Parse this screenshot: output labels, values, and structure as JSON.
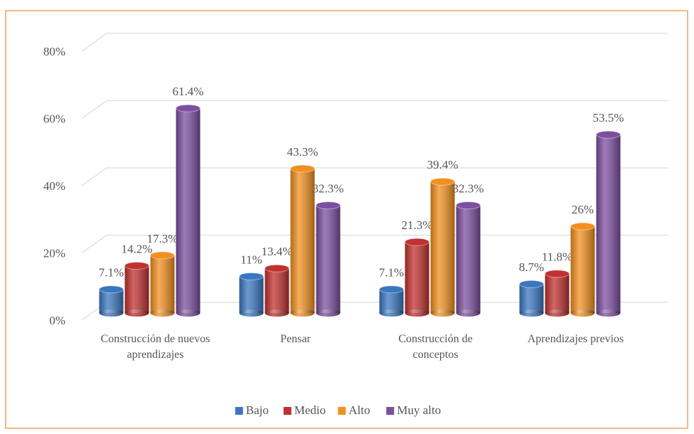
{
  "chart_data": {
    "type": "bar3d",
    "categories": [
      "Construcción de nuevos aprendizajes",
      "Pensar",
      "Construcción de conceptos",
      "Aprendizajes previos"
    ],
    "series": [
      {
        "name": "Bajo",
        "color": "#3a77c2",
        "values": [
          7.1,
          11,
          7.1,
          8.7
        ],
        "value_labels": [
          "7.1%",
          "11%",
          "7.1%",
          "8.7%"
        ]
      },
      {
        "name": "Medio",
        "color": "#c0312f",
        "values": [
          14.2,
          13.4,
          21.3,
          11.8
        ],
        "value_labels": [
          "14.2%",
          "13.4%",
          "21.3%",
          "11.8%"
        ]
      },
      {
        "name": "Alto",
        "color": "#f2901f",
        "values": [
          17.3,
          43.3,
          39.4,
          26
        ],
        "value_labels": [
          "17.3%",
          "43.3%",
          "39.4%",
          "26%"
        ]
      },
      {
        "name": "Muy alto",
        "color": "#7d4fa0",
        "values": [
          61.4,
          32.3,
          32.3,
          53.5
        ],
        "value_labels": [
          "61.4%",
          "32.3%",
          "32.3%",
          "53.5%"
        ]
      }
    ],
    "ylim": [
      0,
      80
    ],
    "yticks": [
      {
        "value": 0,
        "label": "0%"
      },
      {
        "value": 20,
        "label": "20%"
      },
      {
        "value": 40,
        "label": "40%"
      },
      {
        "value": 60,
        "label": "60%"
      },
      {
        "value": 80,
        "label": "80%"
      }
    ],
    "grid": true,
    "legend": "bottom"
  }
}
